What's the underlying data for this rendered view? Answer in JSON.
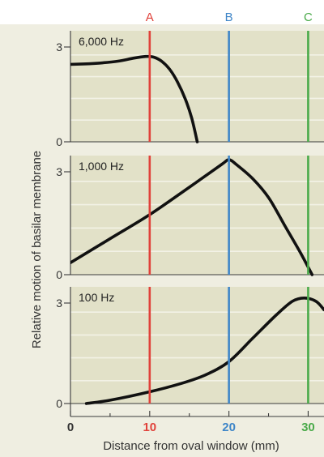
{
  "chart_data": {
    "type": "line",
    "ylabel": "Relative motion of basilar membrane",
    "xlabel": "Distance from oval window (mm)",
    "xlim": [
      0,
      32
    ],
    "grid": true,
    "x_ticks": [
      {
        "value": 0,
        "label": "0",
        "color": "#333333"
      },
      {
        "value": 10,
        "label": "10",
        "color": "#e0413a"
      },
      {
        "value": 20,
        "label": "20",
        "color": "#3f86c8"
      },
      {
        "value": 30,
        "label": "30",
        "color": "#4aaa4a"
      }
    ],
    "markers": [
      {
        "label": "A",
        "x": 10,
        "color": "#e0413a"
      },
      {
        "label": "B",
        "x": 20,
        "color": "#3f86c8"
      },
      {
        "label": "C",
        "x": 30,
        "color": "#4aaa4a"
      }
    ],
    "panels": [
      {
        "label": "6,000 Hz",
        "ylim": [
          0,
          3.5
        ],
        "y_ticks": [
          {
            "value": 0,
            "label": "0"
          },
          {
            "value": 3,
            "label": "3"
          }
        ],
        "points": [
          [
            0,
            2.45
          ],
          [
            3,
            2.48
          ],
          [
            6,
            2.55
          ],
          [
            8,
            2.65
          ],
          [
            9.5,
            2.7
          ],
          [
            10.5,
            2.68
          ],
          [
            11.5,
            2.55
          ],
          [
            12.5,
            2.3
          ],
          [
            13.5,
            1.9
          ],
          [
            14.5,
            1.35
          ],
          [
            15.3,
            0.75
          ],
          [
            16,
            0
          ]
        ]
      },
      {
        "label": "1,000 Hz",
        "ylim": [
          0,
          3.5
        ],
        "y_ticks": [
          {
            "value": 0,
            "label": "0"
          },
          {
            "value": 3,
            "label": "3"
          }
        ],
        "points": [
          [
            0,
            0.35
          ],
          [
            5,
            1.05
          ],
          [
            10,
            1.75
          ],
          [
            15,
            2.55
          ],
          [
            19,
            3.2
          ],
          [
            20,
            3.35
          ],
          [
            21,
            3.2
          ],
          [
            23,
            2.8
          ],
          [
            25,
            2.25
          ],
          [
            27,
            1.45
          ],
          [
            29,
            0.65
          ],
          [
            30.5,
            0
          ]
        ]
      },
      {
        "label": "100 Hz",
        "ylim": [
          0,
          3.5
        ],
        "y_ticks": [
          {
            "value": 0,
            "label": "0"
          },
          {
            "value": 3,
            "label": "3"
          }
        ],
        "points": [
          [
            2,
            0
          ],
          [
            5,
            0.1
          ],
          [
            10,
            0.35
          ],
          [
            14,
            0.6
          ],
          [
            17,
            0.85
          ],
          [
            20,
            1.25
          ],
          [
            23,
            1.95
          ],
          [
            26,
            2.65
          ],
          [
            28,
            3.05
          ],
          [
            29.5,
            3.15
          ],
          [
            31,
            3.05
          ],
          [
            32,
            2.8
          ]
        ]
      }
    ]
  }
}
